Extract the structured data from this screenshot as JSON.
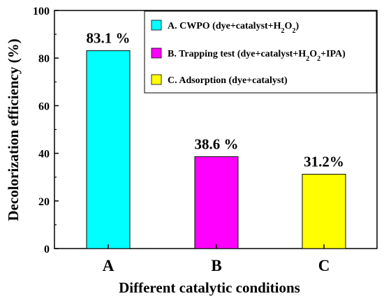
{
  "chart_data": {
    "type": "bar",
    "xlabel": "Different catalytic conditions",
    "ylabel": "Decolorization efficiency (%)",
    "ylim": [
      0,
      100
    ],
    "yticks": [
      0,
      20,
      40,
      60,
      80,
      100
    ],
    "categories": [
      "A",
      "B",
      "C"
    ],
    "values": [
      83.1,
      38.6,
      31.2
    ],
    "data_labels": [
      "83.1 %",
      "38.6 %",
      "31.2%"
    ],
    "colors": [
      "#00ffff",
      "#ff00ff",
      "#ffff00"
    ],
    "grid": false,
    "legend_position": "top-right",
    "legend": [
      {
        "letter": "A.",
        "name": "CWPO (dye+catalyst+H",
        "sub": "2",
        "tail": "O",
        "sub2": "2",
        "end": ")"
      },
      {
        "letter": "B.",
        "name": "Trapping test (dye+catalyst+H",
        "sub": "2",
        "tail": "O",
        "sub2": "2",
        "end": "+IPA)"
      },
      {
        "letter": "C.",
        "name": "Adsorption (dye+catalyst)",
        "sub": "",
        "tail": "",
        "sub2": "",
        "end": ""
      }
    ]
  }
}
